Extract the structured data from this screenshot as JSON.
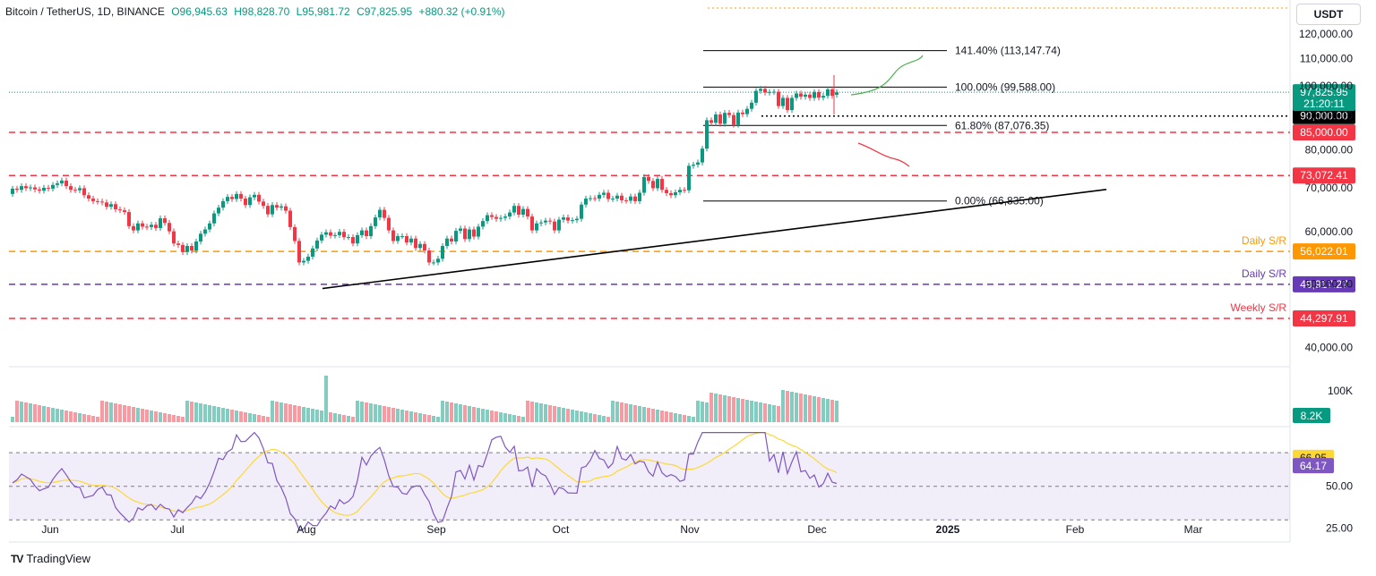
{
  "header": {
    "symbol": "Bitcoin / TetherUS, 1D, BINANCE",
    "open": "O96,945.63",
    "high": "H98,828.70",
    "low": "L95,981.72",
    "close": "C97,825.95",
    "change": "+880.32 (+0.91%)"
  },
  "currency_label": "USDT",
  "brand": "TradingView",
  "colors": {
    "up": "#089981",
    "down": "#f23645",
    "red_line": "#f23645",
    "orange": "#ff9800",
    "purple": "#673ab7",
    "black": "#000000",
    "rsi": "#7e57c2",
    "rsi_ma": "#fdd835",
    "green_path": "#089981"
  },
  "chart_data": {
    "type": "candlestick",
    "title": "Bitcoin / TetherUS, 1D, BINANCE",
    "x_labels": [
      "Jun",
      "Jul",
      "Aug",
      "Sep",
      "Oct",
      "Nov",
      "Dec",
      "2025",
      "Feb",
      "Mar"
    ],
    "price_axis": {
      "ticks": [
        40000,
        50000,
        60000,
        70000,
        80000,
        90000,
        100000,
        110000,
        120000
      ],
      "tick_labels": [
        "40,000.00",
        "50,000.00",
        "60,000.00",
        "70,000.00",
        "80,000.00",
        "90,000.00",
        "100,000.00",
        "110,000.00",
        "120,000.00"
      ],
      "ylim": [
        38000,
        123000
      ],
      "scale": "log"
    },
    "last_price": {
      "value": 97825.95,
      "label": "97,825.95",
      "countdown": "21:20:11"
    },
    "levels": [
      {
        "value": 90000,
        "label": "90,000.00",
        "style": "dotted",
        "color": "#000000",
        "tag": ""
      },
      {
        "value": 85000,
        "label": "85,000.00",
        "style": "dashed",
        "color": "#f23645",
        "tag": ""
      },
      {
        "value": 73072.41,
        "label": "73,072.41",
        "style": "dashed",
        "color": "#f23645",
        "tag": ""
      },
      {
        "value": 56022.01,
        "label": "56,022.01",
        "style": "dashed",
        "color": "#ff9800",
        "tag": "Daily S/R"
      },
      {
        "value": 49917.27,
        "label": "49,917.27",
        "style": "dashed",
        "color": "#673ab7",
        "tag": "Daily S/R"
      },
      {
        "value": 44297.91,
        "label": "44,297.91",
        "style": "dashed",
        "color": "#f23645",
        "tag": "Weekly S/R"
      }
    ],
    "fibonacci": [
      {
        "value": 113147.74,
        "label": "141.40% (113,147.74)"
      },
      {
        "value": 99588.0,
        "label": "100.00% (99,588.00)"
      },
      {
        "value": 87076.35,
        "label": "61.80% (87,076.35)"
      },
      {
        "value": 66835.0,
        "label": "0.00% (66,835.00)"
      }
    ],
    "trendline": [
      {
        "date": "2024-08-05",
        "price": 49200
      },
      {
        "date": "2025-02-08",
        "price": 69600
      }
    ],
    "candles_close": [
      69800,
      69500,
      70400,
      69900,
      70100,
      69600,
      69300,
      70000,
      69800,
      70700,
      71100,
      71800,
      70400,
      69500,
      69400,
      69900,
      68200,
      67400,
      66800,
      66700,
      66500,
      65500,
      66100,
      64900,
      64700,
      64300,
      61200,
      60300,
      61800,
      61100,
      61000,
      61500,
      60800,
      62900,
      61900,
      60100,
      57600,
      57300,
      55900,
      57100,
      56200,
      58000,
      59600,
      60500,
      61800,
      64000,
      65300,
      66800,
      67800,
      67300,
      68500,
      67400,
      65900,
      67700,
      68300,
      66700,
      65700,
      63800,
      65900,
      65300,
      65600,
      64600,
      61000,
      58100,
      53900,
      54200,
      55000,
      56600,
      58200,
      59400,
      59900,
      59200,
      59300,
      60000,
      58900,
      58900,
      57600,
      59300,
      60300,
      59100,
      61200,
      63100,
      64800,
      63000,
      60300,
      58100,
      59100,
      59100,
      57800,
      58600,
      56700,
      57500,
      56200,
      53900,
      53900,
      54600,
      57100,
      58600,
      58000,
      60200,
      60700,
      58500,
      60500,
      59000,
      61100,
      62300,
      63600,
      63200,
      62800,
      63000,
      63300,
      64200,
      65700,
      63700,
      65000,
      63300,
      60300,
      61800,
      62000,
      62400,
      62200,
      60300,
      62600,
      63100,
      62400,
      62500,
      62800,
      66000,
      67400,
      67500,
      67400,
      68300,
      68800,
      67300,
      67400,
      68100,
      67000,
      66900,
      67900,
      66800,
      68800,
      72700,
      71700,
      69900,
      72200,
      69500,
      68700,
      68200,
      68900,
      69500,
      69400,
      75600,
      75900,
      76500,
      80300,
      88700,
      87900,
      90500,
      87600,
      91000,
      90300,
      87300,
      91100,
      90600,
      92300,
      94300,
      98300,
      99000,
      97700,
      97900,
      98000,
      93200,
      95900,
      91900,
      95900,
      97400,
      96300,
      97000,
      95900,
      97900,
      96000,
      96600,
      98800,
      96600,
      97800
    ],
    "candles_open": [
      68500,
      69800,
      69500,
      70400,
      69900,
      70100,
      69600,
      69300,
      70000,
      69800,
      70700,
      71100,
      71800,
      70400,
      69500,
      69400,
      69900,
      68200,
      67400,
      66800,
      66700,
      66500,
      65500,
      66100,
      64900,
      64700,
      64300,
      61200,
      60300,
      61800,
      61100,
      61000,
      61500,
      60800,
      62900,
      61900,
      60100,
      57600,
      57300,
      55900,
      57100,
      56200,
      58000,
      59600,
      60500,
      61800,
      64000,
      65300,
      66800,
      67800,
      67300,
      68500,
      67400,
      65900,
      67700,
      68300,
      66700,
      65700,
      63800,
      65900,
      65300,
      65600,
      64600,
      61000,
      58100,
      53900,
      54200,
      55000,
      56600,
      58200,
      59400,
      59900,
      59200,
      59300,
      60000,
      58900,
      58900,
      57600,
      59300,
      60300,
      59100,
      61200,
      63100,
      64800,
      63000,
      60300,
      58100,
      59100,
      59100,
      57800,
      58600,
      56700,
      57500,
      56200,
      53900,
      53900,
      54600,
      57100,
      58600,
      58000,
      60200,
      60700,
      58500,
      60500,
      59000,
      61100,
      62300,
      63600,
      63200,
      62800,
      63000,
      63300,
      64200,
      65700,
      63700,
      65000,
      63300,
      60300,
      61800,
      62000,
      62400,
      62200,
      60300,
      62600,
      63100,
      62400,
      62500,
      62800,
      66000,
      67400,
      67500,
      67400,
      68300,
      68800,
      67300,
      67400,
      68100,
      67000,
      66900,
      67900,
      66800,
      68800,
      72700,
      71700,
      69900,
      72200,
      69500,
      68700,
      68200,
      68900,
      69500,
      69400,
      75600,
      75900,
      76500,
      80300,
      88700,
      87900,
      90500,
      87600,
      91000,
      90300,
      87300,
      91100,
      90600,
      92300,
      94300,
      98300,
      99000,
      97700,
      97900,
      98000,
      93200,
      95900,
      91900,
      95900,
      97400,
      96300,
      97000,
      95900,
      97900,
      96000,
      96600,
      98800,
      96945.63
    ],
    "volume_axis": {
      "tick_label": "100K",
      "last_label": "8.2K"
    },
    "rsi": {
      "ticks": [
        25,
        50
      ],
      "tick_labels": [
        "25.00",
        "50.00"
      ],
      "band": [
        30,
        70
      ],
      "ylim": [
        20,
        85
      ],
      "ma_value": 66.95,
      "ma_label": "66.95",
      "value": 64.17,
      "value_label": "64.17"
    }
  }
}
